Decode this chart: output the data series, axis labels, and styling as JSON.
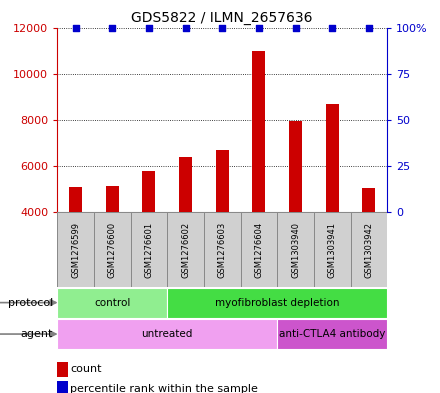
{
  "title": "GDS5822 / ILMN_2657636",
  "samples": [
    "GSM1276599",
    "GSM1276600",
    "GSM1276601",
    "GSM1276602",
    "GSM1276603",
    "GSM1276604",
    "GSM1303940",
    "GSM1303941",
    "GSM1303942"
  ],
  "counts": [
    5100,
    5150,
    5800,
    6400,
    6700,
    11000,
    7950,
    8700,
    5050
  ],
  "percentiles": [
    100,
    100,
    100,
    100,
    100,
    100,
    100,
    100,
    100
  ],
  "bar_color": "#cc0000",
  "dot_color": "#0000cc",
  "ylim_left": [
    4000,
    12000
  ],
  "yticks_left": [
    4000,
    6000,
    8000,
    10000,
    12000
  ],
  "ylim_right": [
    0,
    100
  ],
  "yticks_right": [
    0,
    25,
    50,
    75,
    100
  ],
  "ylabel_left_color": "#cc0000",
  "ylabel_right_color": "#0000cc",
  "protocol_groups": [
    {
      "label": "control",
      "start": 0,
      "end": 3,
      "color": "#90ee90"
    },
    {
      "label": "myofibroblast depletion",
      "start": 3,
      "end": 9,
      "color": "#44dd44"
    }
  ],
  "agent_groups": [
    {
      "label": "untreated",
      "start": 0,
      "end": 6,
      "color": "#f0a0f0"
    },
    {
      "label": "anti-CTLA4 antibody",
      "start": 6,
      "end": 9,
      "color": "#cc55cc"
    }
  ],
  "protocol_label": "protocol",
  "agent_label": "agent",
  "legend_count_label": "count",
  "legend_pct_label": "percentile rank within the sample",
  "bar_width": 0.35,
  "background_color": "#ffffff",
  "plot_bg_color": "#ffffff",
  "grid_color": "#000000",
  "sample_box_color": "#d0d0d0",
  "sample_box_edge": "#888888"
}
